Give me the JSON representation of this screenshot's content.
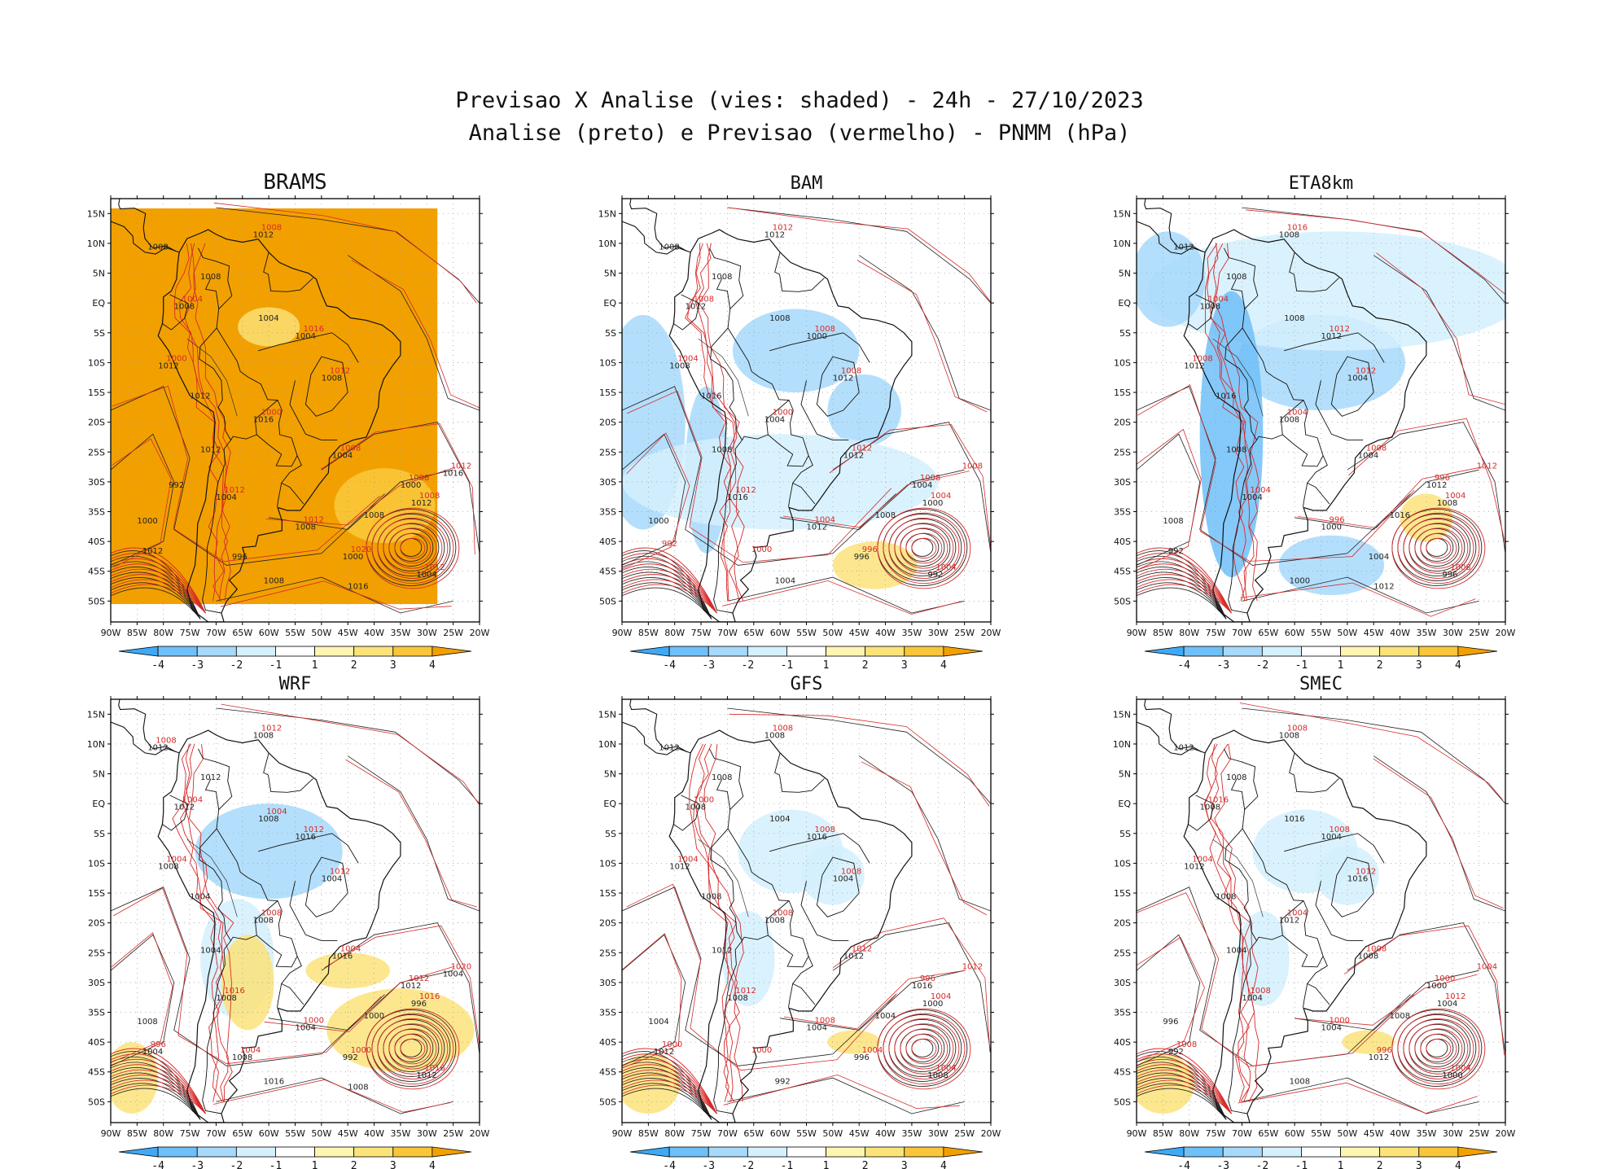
{
  "title": {
    "line1": "Previsao X Analise (vies: shaded) - 24h - 27/10/2023",
    "line2": "Analise (preto) e Previsao (vermelho) - PNMM (hPa)"
  },
  "axes": {
    "lat_ticks": [
      "15N",
      "10N",
      "5N",
      "EQ",
      "5S",
      "10S",
      "15S",
      "20S",
      "25S",
      "30S",
      "35S",
      "40S",
      "45S",
      "50S"
    ],
    "lon_ticks": [
      "90W",
      "85W",
      "80W",
      "75W",
      "70W",
      "65W",
      "60W",
      "55W",
      "50W",
      "45W",
      "40W",
      "35W",
      "30W",
      "25W",
      "20W"
    ],
    "lat_values": [
      15,
      10,
      5,
      0,
      -5,
      -10,
      -15,
      -20,
      -25,
      -30,
      -35,
      -40,
      -45,
      -50
    ],
    "lon_values": [
      -90,
      -85,
      -80,
      -75,
      -70,
      -65,
      -60,
      -55,
      -50,
      -45,
      -40,
      -35,
      -30,
      -25,
      -20
    ]
  },
  "colorbar": {
    "labels": [
      "-4",
      "-3",
      "-2",
      "-1",
      "1",
      "2",
      "3",
      "4"
    ],
    "colors": [
      "#3fa9f5",
      "#6fc0f8",
      "#a6d9fb",
      "#d4f0fd",
      "#ffffff",
      "#fdf5b0",
      "#fbe37a",
      "#f9c63a",
      "#f2a000"
    ]
  },
  "colors": {
    "analysis": "#222222",
    "forecast": "#d62a2a",
    "coast": "#111111"
  },
  "panels": [
    {
      "id": "brams",
      "name": "BRAMS",
      "bias": "warm",
      "labels_black": [
        "1012",
        "1008",
        "1008",
        "1008",
        "1004",
        "1004",
        "1012",
        "1012",
        "1008",
        "1016",
        "1012",
        "1004",
        "1000",
        "1000",
        "1004",
        "1008",
        "1008",
        "1012",
        "1000",
        "1008",
        "1004",
        "1012",
        "1016",
        "1016",
        "996",
        "992"
      ],
      "labels_red": [
        "1016",
        "1012",
        "1008",
        "1012",
        "1008",
        "1012",
        "1012",
        "1008",
        "1004",
        "1000",
        "1000",
        "1008",
        "1012",
        "1020"
      ]
    },
    {
      "id": "bam",
      "name": "BAM",
      "bias": "cool",
      "labels_black": [
        "1012",
        "1008",
        "1008",
        "1012",
        "1008",
        "1000",
        "1008",
        "1016",
        "1012",
        "1004",
        "1008",
        "1012",
        "1004",
        "1000",
        "1016",
        "1012",
        "1008",
        "1000",
        "996",
        "1004",
        "992"
      ],
      "labels_red": [
        "1008",
        "1008",
        "1012",
        "1012",
        "1004",
        "1004",
        "1008",
        "1012",
        "1008",
        "1004",
        "1000",
        "1008",
        "1004",
        "996",
        "992",
        "1000"
      ]
    },
    {
      "id": "eta8km",
      "name": "ETA8km",
      "bias": "strongcool",
      "labels_black": [
        "1008",
        "1012",
        "1008",
        "1008",
        "1008",
        "1012",
        "1012",
        "1016",
        "1004",
        "1008",
        "1008",
        "1004",
        "1012",
        "1008",
        "1004",
        "1000",
        "1016",
        "1008",
        "1004",
        "1000",
        "996",
        "992",
        "1012"
      ],
      "labels_red": [
        "1012",
        "1012",
        "1008",
        "1004",
        "1004",
        "1008",
        "1012",
        "1016",
        "1004",
        "1008",
        "1004",
        "996",
        "996"
      ]
    },
    {
      "id": "wrf",
      "name": "WRF",
      "bias": "mixed",
      "labels_black": [
        "1008",
        "1012",
        "1012",
        "1012",
        "1008",
        "1016",
        "1008",
        "1004",
        "1004",
        "1008",
        "1004",
        "1016",
        "1012",
        "1008",
        "1008",
        "1004",
        "1000",
        "996",
        "992",
        "1016",
        "1012",
        "1004",
        "1008",
        "1004",
        "1008"
      ],
      "labels_red": [
        "1012",
        "1012",
        "1004",
        "1016",
        "1016",
        "1016",
        "1020",
        "1012",
        "1004",
        "1004",
        "1008",
        "1012",
        "1000",
        "1000",
        "996",
        "1004",
        "1008",
        "1004"
      ]
    },
    {
      "id": "gfs",
      "name": "GFS",
      "bias": "light",
      "labels_black": [
        "1008",
        "1012",
        "1008",
        "1008",
        "1004",
        "1016",
        "1012",
        "1008",
        "1004",
        "1008",
        "1012",
        "1012",
        "1016",
        "1004",
        "1008",
        "1004",
        "1004",
        "1000",
        "996",
        "992",
        "1008",
        "1012"
      ],
      "labels_red": [
        "1008",
        "1008",
        "1012",
        "1012",
        "1004",
        "1004",
        "1012",
        "1008",
        "1000",
        "1004",
        "1008",
        "996",
        "1008",
        "1004",
        "1000",
        "1000"
      ]
    },
    {
      "id": "smec",
      "name": "SMEC",
      "bias": "light",
      "labels_black": [
        "1008",
        "1012",
        "1008",
        "1008",
        "1016",
        "1004",
        "1012",
        "1008",
        "1016",
        "1012",
        "1004",
        "1008",
        "1000",
        "996",
        "1004",
        "1004",
        "1008",
        "1004",
        "1012",
        "1008",
        "1000",
        "992"
      ],
      "labels_red": [
        "1008",
        "1012",
        "1008",
        "1008",
        "1012",
        "1004",
        "1004",
        "1008",
        "1016",
        "1004",
        "1004",
        "1000",
        "1000",
        "996",
        "1008"
      ]
    }
  ]
}
